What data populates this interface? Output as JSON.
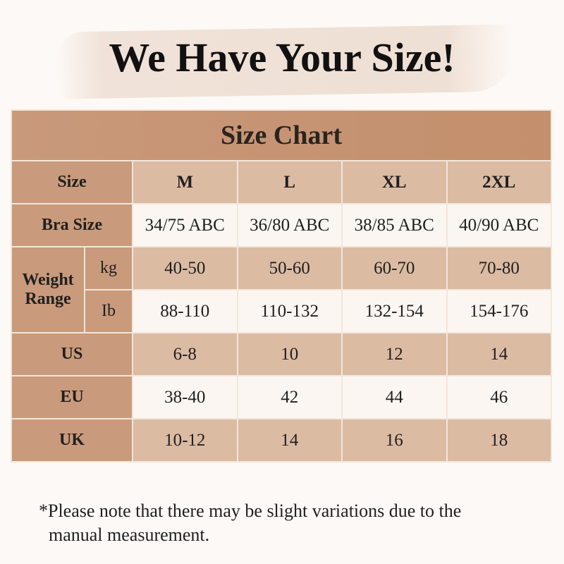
{
  "headline": "We Have Your Size!",
  "table": {
    "title": "Size Chart",
    "size_label": "Size",
    "sizes": [
      "M",
      "L",
      "XL",
      "2XL"
    ],
    "rows": {
      "bra": {
        "label": "Bra Size",
        "values": [
          "34/75 ABC",
          "36/80 ABC",
          "38/85 ABC",
          "40/90 ABC"
        ]
      },
      "weight_label_1": "Weight",
      "weight_label_2": "Range",
      "kg": {
        "label": "kg",
        "values": [
          "40-50",
          "50-60",
          "60-70",
          "70-80"
        ]
      },
      "lb": {
        "label": "Ib",
        "values": [
          "88-110",
          "110-132",
          "132-154",
          "154-176"
        ]
      },
      "us": {
        "label": "US",
        "values": [
          "6-8",
          "10",
          "12",
          "14"
        ]
      },
      "eu": {
        "label": "EU",
        "values": [
          "38-40",
          "42",
          "44",
          "46"
        ]
      },
      "uk": {
        "label": "UK",
        "values": [
          "10-12",
          "14",
          "16",
          "18"
        ]
      }
    }
  },
  "note": {
    "line1": "*Please note that there may be slight variations due to the",
    "line2": "manual measurement."
  },
  "colors": {
    "header": "#c99a7b",
    "band": "#dcbba3",
    "light": "#fbf6f2",
    "background": "#fdf9f6"
  }
}
